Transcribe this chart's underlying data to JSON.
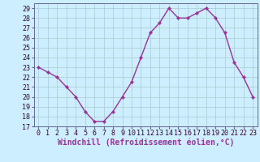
{
  "x": [
    0,
    1,
    2,
    3,
    4,
    5,
    6,
    7,
    8,
    9,
    10,
    11,
    12,
    13,
    14,
    15,
    16,
    17,
    18,
    19,
    20,
    21,
    22,
    23
  ],
  "y": [
    23,
    22.5,
    22,
    21,
    20,
    18.5,
    17.5,
    17.5,
    18.5,
    20,
    21.5,
    24,
    26.5,
    27.5,
    29,
    28,
    28,
    28.5,
    29,
    28,
    26.5,
    23.5,
    22,
    20
  ],
  "line_color": "#993399",
  "marker": "D",
  "marker_size": 2.2,
  "bg_color": "#cceeff",
  "grid_color": "#aacccc",
  "xlabel": "Windchill (Refroidissement éolien,°C)",
  "xlim": [
    -0.5,
    23.5
  ],
  "ylim": [
    17,
    29.5
  ],
  "yticks": [
    17,
    18,
    19,
    20,
    21,
    22,
    23,
    24,
    25,
    26,
    27,
    28,
    29
  ],
  "xticks": [
    0,
    1,
    2,
    3,
    4,
    5,
    6,
    7,
    8,
    9,
    10,
    11,
    12,
    13,
    14,
    15,
    16,
    17,
    18,
    19,
    20,
    21,
    22,
    23
  ],
  "tick_fontsize": 6,
  "xlabel_fontsize": 7,
  "line_width": 1.0
}
